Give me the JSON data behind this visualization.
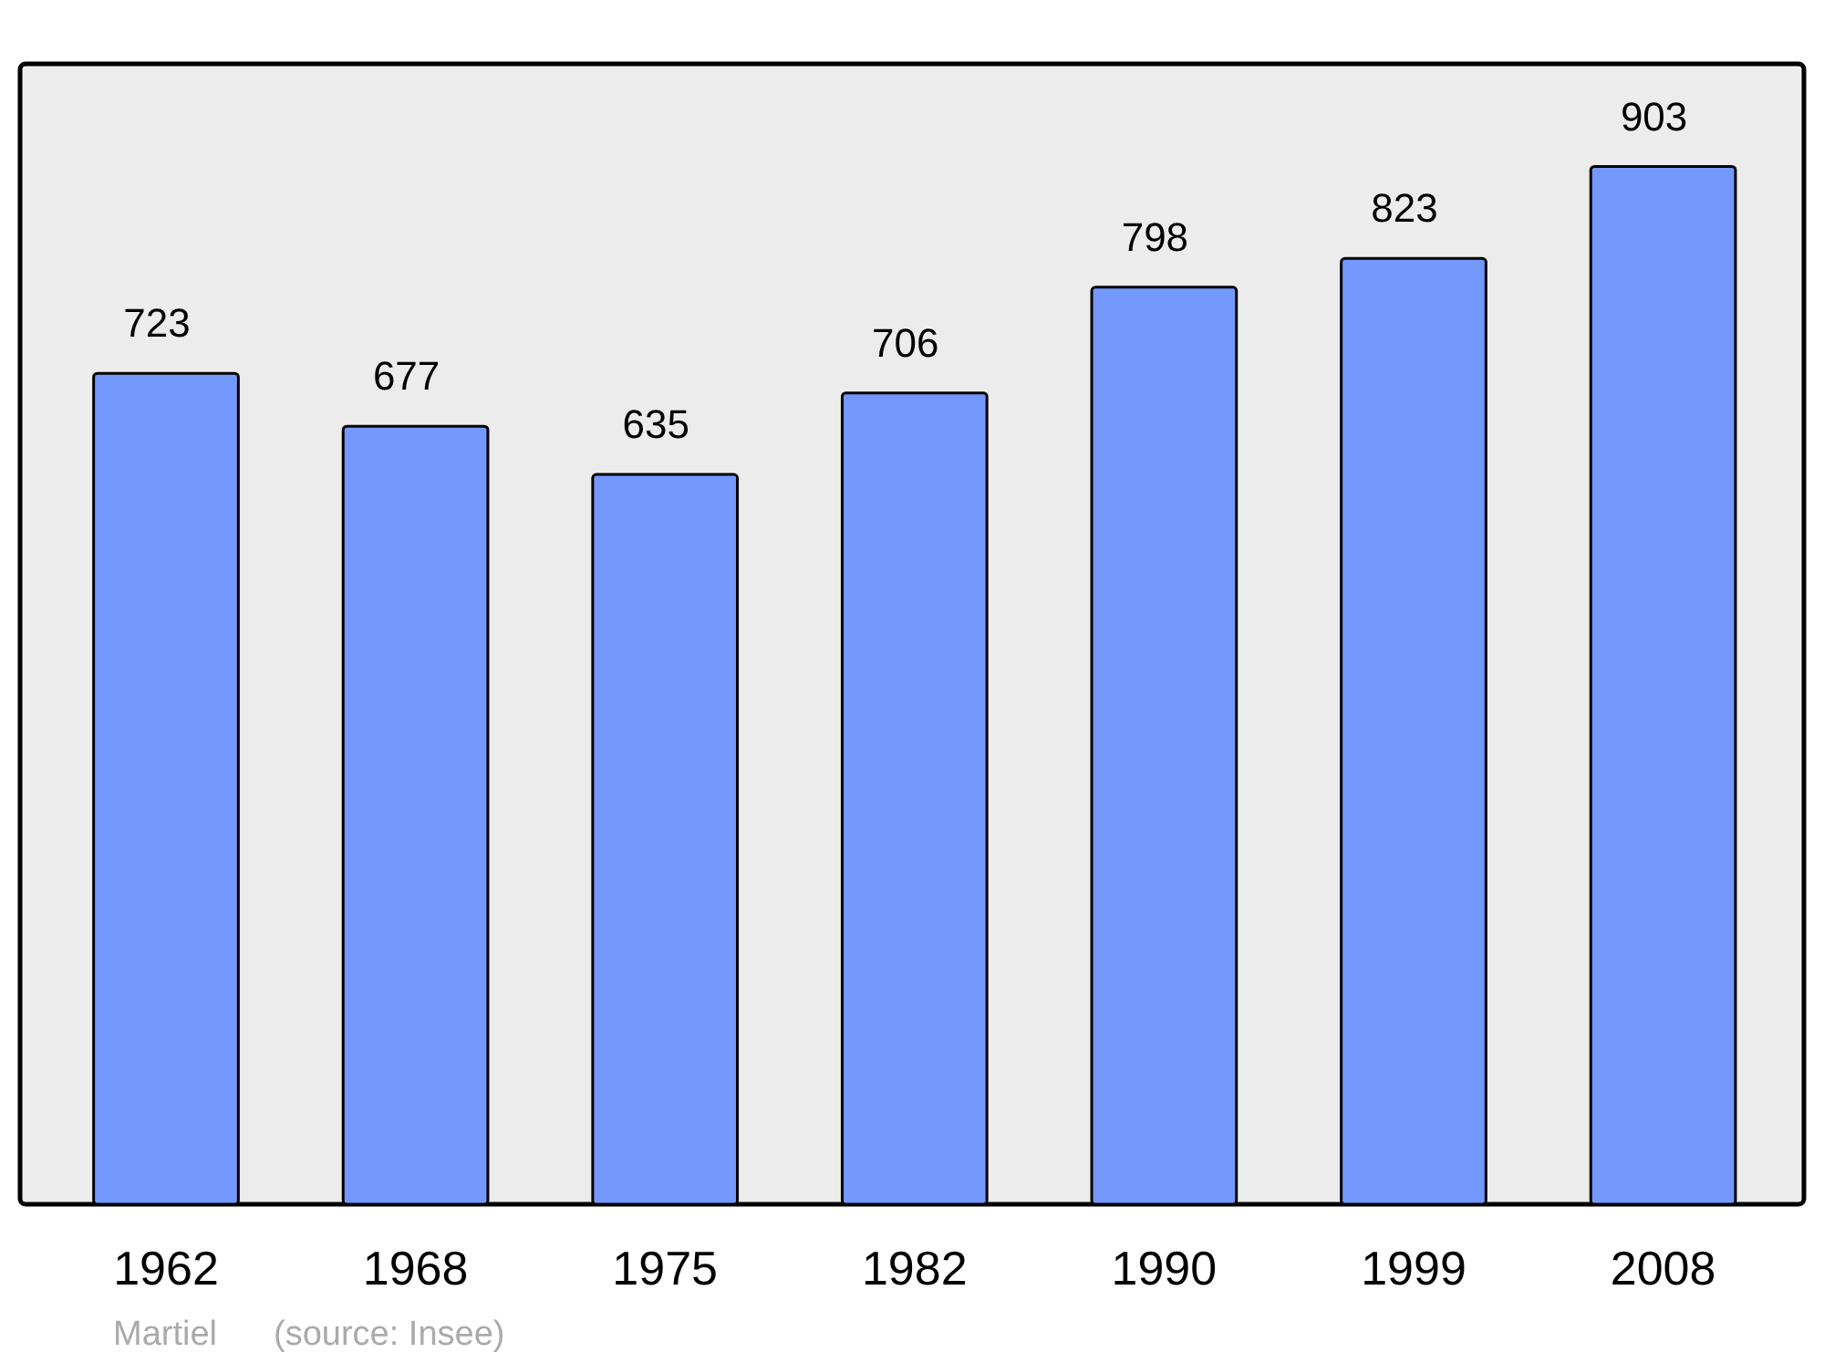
{
  "chart_data": {
    "type": "bar",
    "categories": [
      "1962",
      "1968",
      "1975",
      "1982",
      "1990",
      "1999",
      "2008"
    ],
    "values": [
      723,
      677,
      635,
      706,
      798,
      823,
      903
    ],
    "color": "#7399ff",
    "data_labels": true,
    "annotations": [
      "Martiel",
      "(source: Insee)"
    ]
  }
}
